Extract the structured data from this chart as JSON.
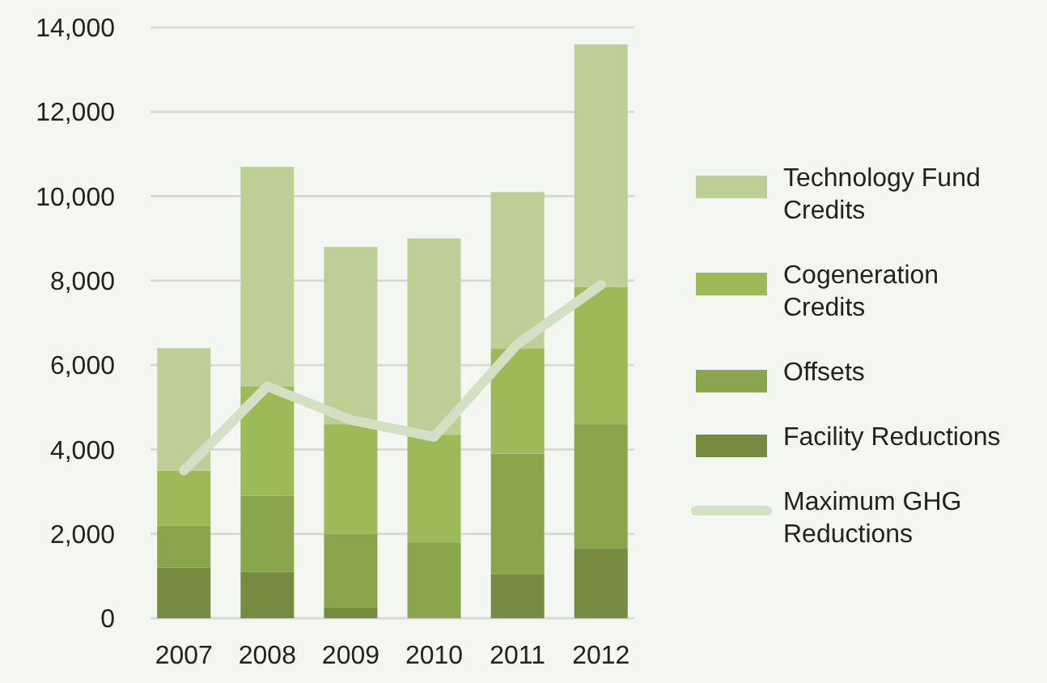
{
  "chart_data": {
    "type": "bar",
    "stacked": true,
    "categories": [
      "2007",
      "2008",
      "2009",
      "2010",
      "2011",
      "2012"
    ],
    "series": [
      {
        "name": "Facility Reductions",
        "color": "#758c40",
        "values": [
          1200,
          1100,
          250,
          0,
          1050,
          1650
        ]
      },
      {
        "name": "Offsets",
        "color": "#8aa64d",
        "values": [
          1000,
          1800,
          1750,
          1800,
          2850,
          2950
        ]
      },
      {
        "name": "Cogeneration Credits",
        "color": "#9cbb58",
        "values": [
          1300,
          2600,
          2600,
          2550,
          2500,
          3250
        ]
      },
      {
        "name": "Technology Fund Credits",
        "color": "#bbcf96",
        "values": [
          2900,
          5200,
          4200,
          4650,
          3700,
          5750
        ]
      },
      {
        "name": "Maximum GHG Reductions",
        "type": "line",
        "color": "#d3e0c4",
        "values": [
          3500,
          5500,
          4700,
          4300,
          6500,
          7900
        ]
      }
    ],
    "ylim": [
      0,
      14000
    ],
    "yticks": [
      {
        "value": 0,
        "label": "0"
      },
      {
        "value": 2000,
        "label": "2,000"
      },
      {
        "value": 4000,
        "label": "4,000"
      },
      {
        "value": 6000,
        "label": "6,000"
      },
      {
        "value": 8000,
        "label": "8,000"
      },
      {
        "value": 10000,
        "label": "10,000"
      },
      {
        "value": 12000,
        "label": "12,000"
      },
      {
        "value": 14000,
        "label": "14,000"
      }
    ],
    "grid": "y",
    "legend": "right",
    "marker": "none"
  }
}
